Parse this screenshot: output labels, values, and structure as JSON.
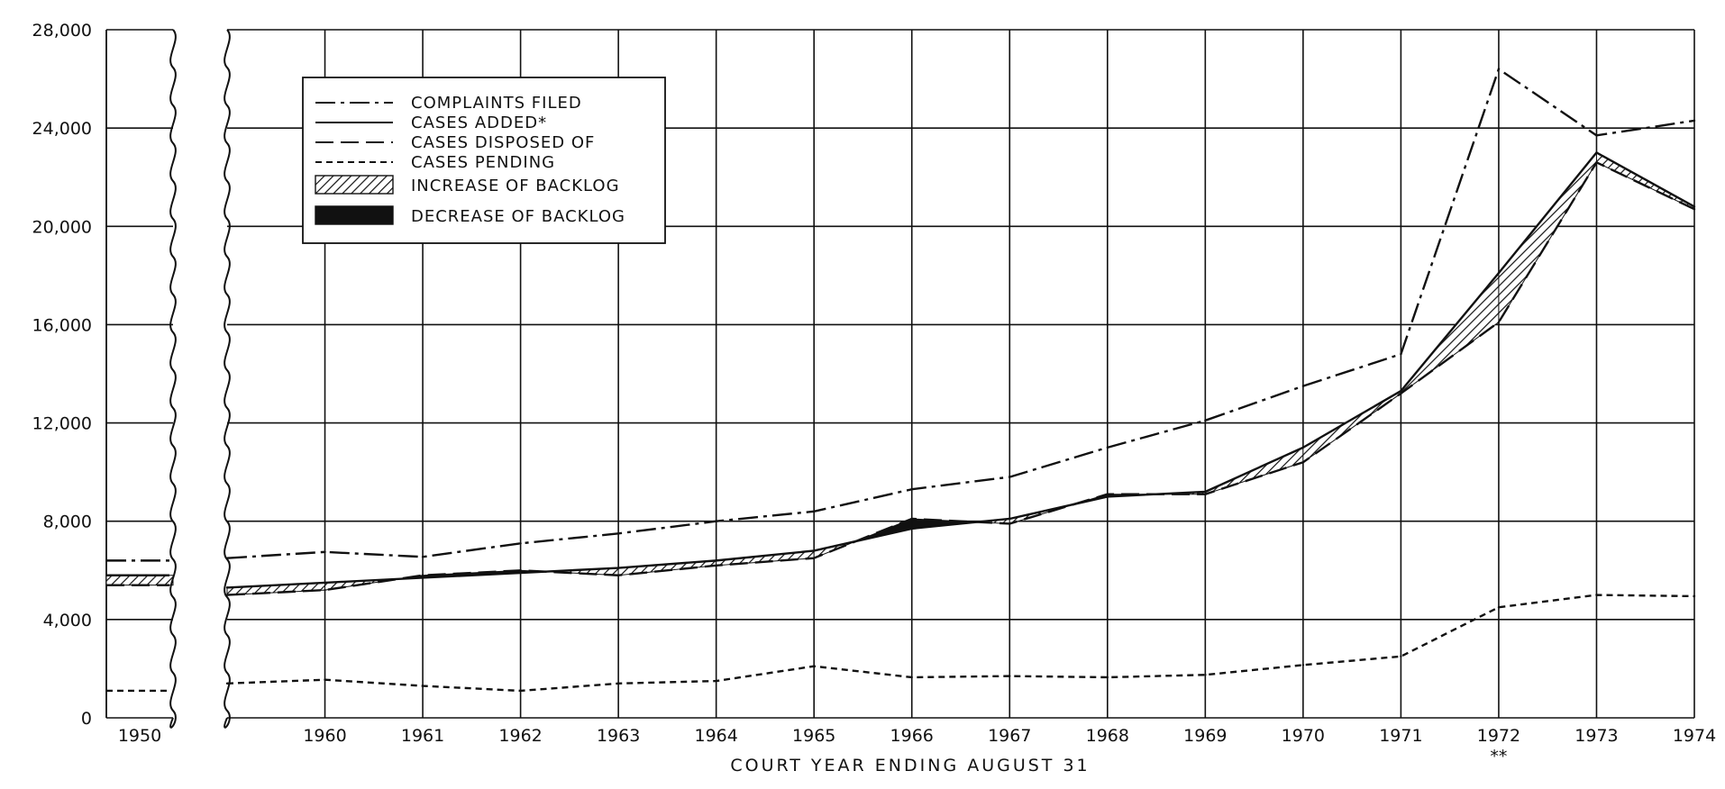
{
  "chart_data": {
    "type": "line",
    "title": "",
    "xlabel": "COURT YEAR ENDING AUGUST 31",
    "ylabel": "",
    "ylim": [
      0,
      28000
    ],
    "yticks": [
      {
        "value": 0,
        "label": "0"
      },
      {
        "value": 4000,
        "label": "4,000"
      },
      {
        "value": 8000,
        "label": "8,000"
      },
      {
        "value": 12000,
        "label": "12,000"
      },
      {
        "value": 16000,
        "label": "16,000"
      },
      {
        "value": 20000,
        "label": "20,000"
      },
      {
        "value": 24000,
        "label": "24,000"
      },
      {
        "value": 28000,
        "label": "28,000"
      }
    ],
    "x_break": {
      "before": 1950,
      "after": 1959
    },
    "xticks": [
      "1950",
      "1960",
      "1961",
      "1962",
      "1963",
      "1964",
      "1965",
      "1966",
      "1967",
      "1968",
      "1969",
      "1970",
      "1971",
      "1972",
      "1973",
      "1974"
    ],
    "x_footnote": {
      "year": 1972,
      "text": "**"
    },
    "grid": true,
    "legend_position": "top-left",
    "series": [
      {
        "name": "COMPLAINTS FILED",
        "style": "dash-dot",
        "x": [
          1959,
          1960,
          1961,
          1962,
          1963,
          1964,
          1965,
          1966,
          1967,
          1968,
          1969,
          1970,
          1971,
          1972,
          1973,
          1974
        ],
        "values": [
          6500,
          6750,
          6550,
          7100,
          7500,
          8000,
          8400,
          9300,
          9800,
          11000,
          12100,
          13500,
          14800,
          26400,
          23700,
          24300
        ],
        "pre_break": {
          "x": 1950,
          "value": 6400
        }
      },
      {
        "name": "CASES ADDED*",
        "style": "solid",
        "x": [
          1959,
          1960,
          1961,
          1962,
          1963,
          1964,
          1965,
          1966,
          1967,
          1968,
          1969,
          1970,
          1971,
          1972,
          1973,
          1974
        ],
        "values": [
          5300,
          5500,
          5700,
          5900,
          6100,
          6400,
          6800,
          7700,
          8100,
          9000,
          9200,
          11000,
          13300,
          18100,
          23000,
          20800
        ],
        "pre_break": {
          "x": 1950,
          "value": 5800
        }
      },
      {
        "name": "CASES DISPOSED OF",
        "style": "long-dash",
        "x": [
          1959,
          1960,
          1961,
          1962,
          1963,
          1964,
          1965,
          1966,
          1967,
          1968,
          1969,
          1970,
          1971,
          1972,
          1973,
          1974
        ],
        "values": [
          5000,
          5200,
          5800,
          6000,
          5800,
          6200,
          6500,
          8100,
          7900,
          9100,
          9100,
          10400,
          13200,
          16100,
          22600,
          20700
        ],
        "pre_break": {
          "x": 1950,
          "value": 5400
        }
      },
      {
        "name": "CASES PENDING",
        "style": "short-dash",
        "x": [
          1959,
          1960,
          1961,
          1962,
          1963,
          1964,
          1965,
          1966,
          1967,
          1968,
          1969,
          1970,
          1971,
          1972,
          1973,
          1974
        ],
        "values": [
          1400,
          1550,
          1300,
          1100,
          1400,
          1500,
          2100,
          1650,
          1700,
          1650,
          1750,
          2150,
          2500,
          4500,
          5000,
          4950
        ],
        "pre_break": {
          "x": 1950,
          "value": 1100
        }
      }
    ],
    "areas": [
      {
        "name": "INCREASE OF BACKLOG",
        "fill": "hatched",
        "between": [
          "CASES ADDED*",
          "CASES DISPOSED OF"
        ],
        "when": "added > disposed"
      },
      {
        "name": "DECREASE OF BACKLOG",
        "fill": "solid-black",
        "between": [
          "CASES ADDED*",
          "CASES DISPOSED OF"
        ],
        "when": "disposed > added"
      }
    ],
    "legend": [
      {
        "label": "COMPLAINTS FILED",
        "kind": "line",
        "dash": "dash-dot"
      },
      {
        "label": "CASES ADDED*",
        "kind": "line",
        "dash": "solid"
      },
      {
        "label": "CASES DISPOSED OF",
        "kind": "line",
        "dash": "long-dash"
      },
      {
        "label": "CASES PENDING",
        "kind": "line",
        "dash": "short-dash"
      },
      {
        "label": "INCREASE OF BACKLOG",
        "kind": "swatch",
        "fill": "hatched"
      },
      {
        "label": "DECREASE OF BACKLOG",
        "kind": "swatch",
        "fill": "solid-black"
      }
    ]
  },
  "colors": {
    "ink": "#111111",
    "grid": "#111111",
    "background": "#ffffff"
  }
}
